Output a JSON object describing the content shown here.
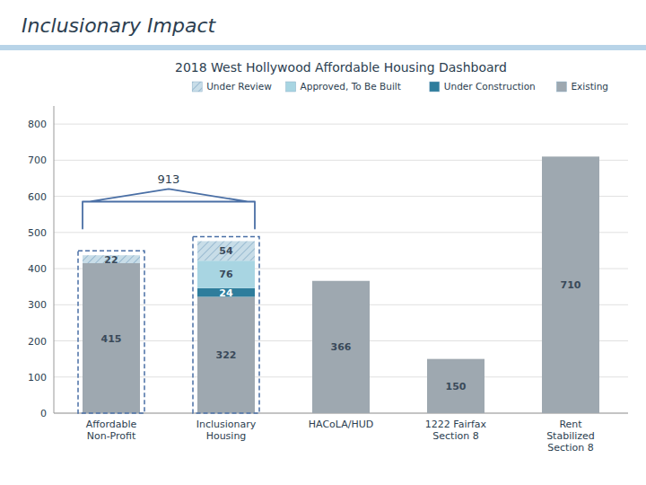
{
  "chart_data": {
    "type": "bar",
    "stacked": true,
    "subtitle": "Inclusionary Impact",
    "title": "2018 West Hollywood Affordable Housing Dashboard",
    "categories": [
      "Affordable\nNon-Profit",
      "Inclusionary\nHousing",
      "HACoLA/HUD",
      "1222 Fairfax\nSection 8",
      "Rent\nStabilized\nSection 8"
    ],
    "series": [
      {
        "name": "Existing",
        "color": "#9EA8B0",
        "values": [
          415,
          322,
          366,
          150,
          710
        ]
      },
      {
        "name": "Under Construction",
        "color": "#2E7D9C",
        "values": [
          0,
          24,
          0,
          0,
          0
        ]
      },
      {
        "name": "Approved, To Be Built",
        "color": "#A8D5E2",
        "values": [
          0,
          76,
          0,
          0,
          0
        ]
      },
      {
        "name": "Under Review",
        "color": "#C8DDE8",
        "values": [
          22,
          54,
          0,
          0,
          0
        ]
      }
    ],
    "ylim": [
      0,
      850
    ],
    "yticks": [
      0,
      100,
      200,
      300,
      400,
      500,
      600,
      700,
      800
    ],
    "grid": true,
    "legend": "upper right",
    "data_labels": true,
    "annotations": [
      {
        "text": "913",
        "categories": [
          "Affordable\nNon-Profit",
          "Inclusionary\nHousing"
        ]
      }
    ]
  }
}
